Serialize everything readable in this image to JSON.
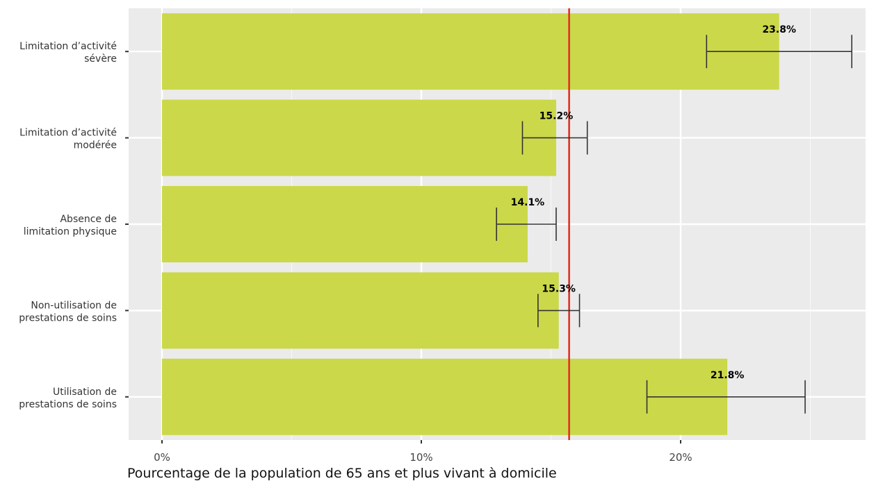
{
  "chart_data": {
    "type": "bar",
    "orientation": "horizontal",
    "xlabel": "Pourcentage de la population de 65 ans et plus vivant à domicile",
    "xlim": [
      -1.3,
      27.6
    ],
    "x_ticks": [
      {
        "value": 0,
        "label": "0%"
      },
      {
        "value": 10,
        "label": "10%"
      },
      {
        "value": 20,
        "label": "20%"
      }
    ],
    "reference_line": {
      "value": 15.7,
      "color": "#e03020"
    },
    "bar_color": "#cbd84a",
    "grid": true,
    "categories": [
      {
        "lines": [
          "Limitation d’activité",
          "sévère"
        ],
        "value": 23.8,
        "label": "23.8%",
        "ci": [
          21.0,
          26.6
        ]
      },
      {
        "lines": [
          "Limitation d’activité",
          "modérée"
        ],
        "value": 15.2,
        "label": "15.2%",
        "ci": [
          13.9,
          16.4
        ]
      },
      {
        "lines": [
          "Absence de",
          "limitation physique"
        ],
        "value": 14.1,
        "label": "14.1%",
        "ci": [
          12.9,
          15.2
        ]
      },
      {
        "lines": [
          "Non-utilisation de",
          "prestations de soins"
        ],
        "value": 15.3,
        "label": "15.3%",
        "ci": [
          14.5,
          16.1
        ]
      },
      {
        "lines": [
          "Utilisation de",
          "prestations de soins"
        ],
        "value": 21.8,
        "label": "21.8%",
        "ci": [
          18.7,
          24.8
        ]
      }
    ]
  }
}
